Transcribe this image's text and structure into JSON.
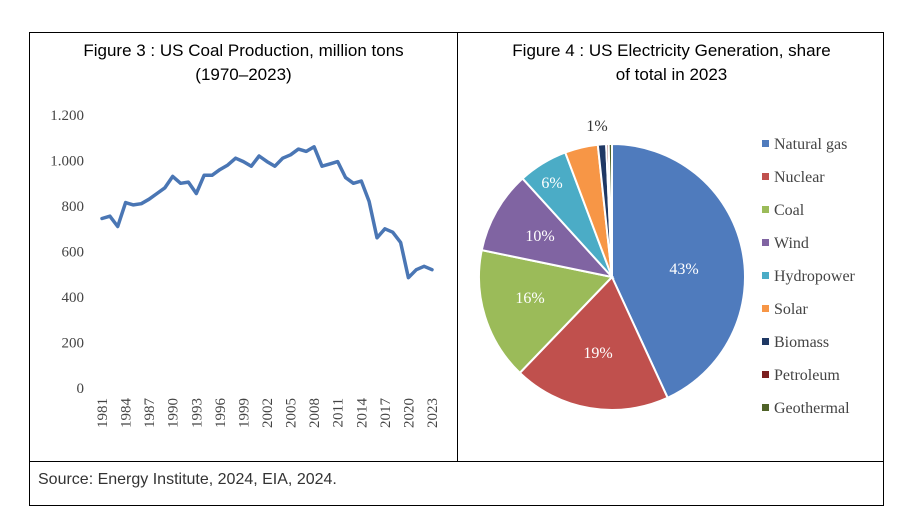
{
  "source": "Source: Energy Institute, 2024, EIA, 2024.",
  "chart_data": [
    {
      "type": "line",
      "title_line1": "Figure 3 : US Coal Production, million tons",
      "title_line2": "(1970–2023)",
      "color": "#4a76b4",
      "ylim": [
        0,
        1200
      ],
      "yticks": [
        0,
        200,
        400,
        600,
        800,
        1000,
        1200
      ],
      "ytick_labels": [
        "0",
        "200",
        "400",
        "600",
        "800",
        "1.000",
        "1.200"
      ],
      "xtick_labels": [
        "1981",
        "1984",
        "1987",
        "1990",
        "1993",
        "1996",
        "1999",
        "2002",
        "2005",
        "2008",
        "2011",
        "2014",
        "2017",
        "2020",
        "2023"
      ],
      "x": [
        1981,
        1982,
        1983,
        1984,
        1985,
        1986,
        1987,
        1988,
        1989,
        1990,
        1991,
        1992,
        1993,
        1994,
        1995,
        1996,
        1997,
        1998,
        1999,
        2000,
        2001,
        2002,
        2003,
        2004,
        2005,
        2006,
        2007,
        2008,
        2009,
        2010,
        2011,
        2012,
        2013,
        2014,
        2015,
        2016,
        2017,
        2018,
        2019,
        2020,
        2021,
        2022,
        2023
      ],
      "values": [
        745,
        755,
        710,
        815,
        805,
        810,
        830,
        855,
        880,
        930,
        900,
        905,
        855,
        935,
        935,
        960,
        980,
        1010,
        995,
        975,
        1020,
        995,
        975,
        1010,
        1025,
        1050,
        1040,
        1060,
        975,
        985,
        995,
        925,
        900,
        910,
        820,
        660,
        700,
        685,
        640,
        485,
        520,
        535,
        520
      ]
    },
    {
      "type": "pie",
      "title_line1": "Figure 4 : US Electricity Generation, share",
      "title_line2": "of total in 2023",
      "slices": [
        {
          "name": "Natural gas",
          "value": 43,
          "label": "43%",
          "color": "#4f7bbd"
        },
        {
          "name": "Nuclear",
          "value": 19,
          "label": "19%",
          "color": "#c0504d"
        },
        {
          "name": "Coal",
          "value": 16,
          "label": "16%",
          "color": "#9bbb59"
        },
        {
          "name": "Wind",
          "value": 10,
          "label": "10%",
          "color": "#8064a2"
        },
        {
          "name": "Hydropower",
          "value": 6,
          "label": "6%",
          "color": "#4bacc6"
        },
        {
          "name": "Solar",
          "value": 4,
          "label": "",
          "color": "#f79646"
        },
        {
          "name": "Biomass",
          "value": 1,
          "label": "1%",
          "color": "#1f3864"
        },
        {
          "name": "Petroleum",
          "value": 0.3,
          "label": "",
          "color": "#7b1f1f"
        },
        {
          "name": "Geothermal",
          "value": 0.4,
          "label": "",
          "color": "#4f6228"
        }
      ]
    }
  ]
}
